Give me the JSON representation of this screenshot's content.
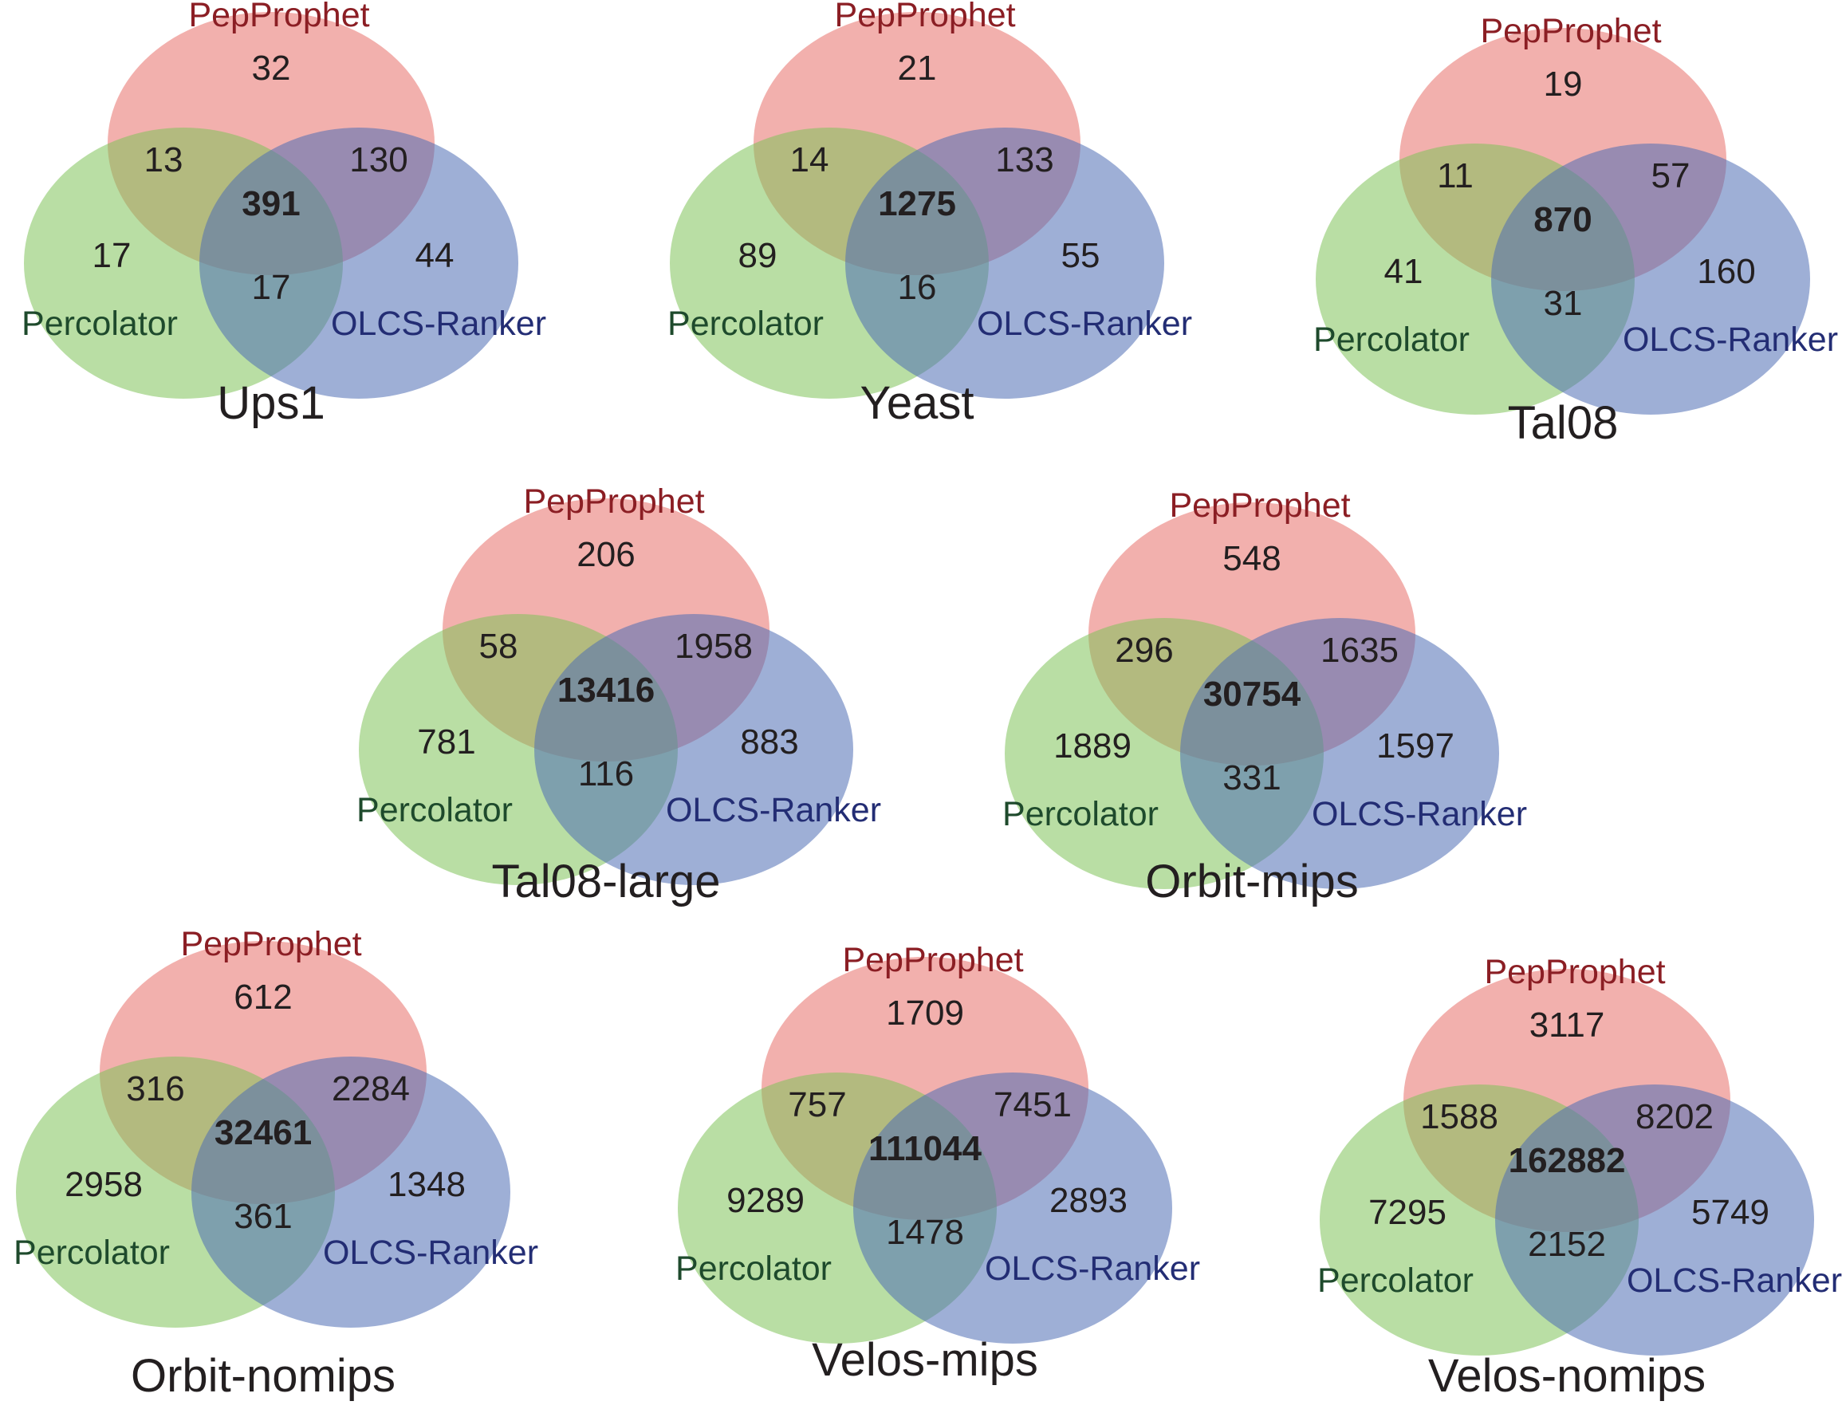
{
  "colors": {
    "pepprophet_fill": "#e8706a",
    "percolator_fill": "#7fc25a",
    "olcs_fill": "#4f6db4",
    "pepprophet_text": "#8b1e24",
    "percolator_text": "#1e4a2c",
    "olcs_text": "#232d74",
    "number_text": "#231f20"
  },
  "set_labels": {
    "a": "PepProphet",
    "b": "Percolator",
    "c": "OLCS-Ranker"
  },
  "diagrams": [
    {
      "title": "Ups1",
      "a_only": "32",
      "ab": "13",
      "ac": "130",
      "abc": "391",
      "b_only": "17",
      "c_only": "44",
      "bc": "17"
    },
    {
      "title": "Yeast",
      "a_only": "21",
      "ab": "14",
      "ac": "133",
      "abc": "1275",
      "b_only": "89",
      "c_only": "55",
      "bc": "16"
    },
    {
      "title": "Tal08",
      "a_only": "19",
      "ab": "11",
      "ac": "57",
      "abc": "870",
      "b_only": "41",
      "c_only": "160",
      "bc": "31"
    },
    {
      "title": "Tal08-large",
      "a_only": "206",
      "ab": "58",
      "ac": "1958",
      "abc": "13416",
      "b_only": "781",
      "c_only": "883",
      "bc": "116"
    },
    {
      "title": "Orbit-mips",
      "a_only": "548",
      "ab": "296",
      "ac": "1635",
      "abc": "30754",
      "b_only": "1889",
      "c_only": "1597",
      "bc": "331"
    },
    {
      "title": "Orbit-nomips",
      "a_only": "612",
      "ab": "316",
      "ac": "2284",
      "abc": "32461",
      "b_only": "2958",
      "c_only": "1348",
      "bc": "361"
    },
    {
      "title": "Velos-mips",
      "a_only": "1709",
      "ab": "757",
      "ac": "7451",
      "abc": "111044",
      "b_only": "9289",
      "c_only": "2893",
      "bc": "1478"
    },
    {
      "title": "Velos-nomips",
      "a_only": "3117",
      "ab": "1588",
      "ac": "8202",
      "abc": "162882",
      "b_only": "7295",
      "c_only": "5749",
      "bc": "2152"
    }
  ]
}
